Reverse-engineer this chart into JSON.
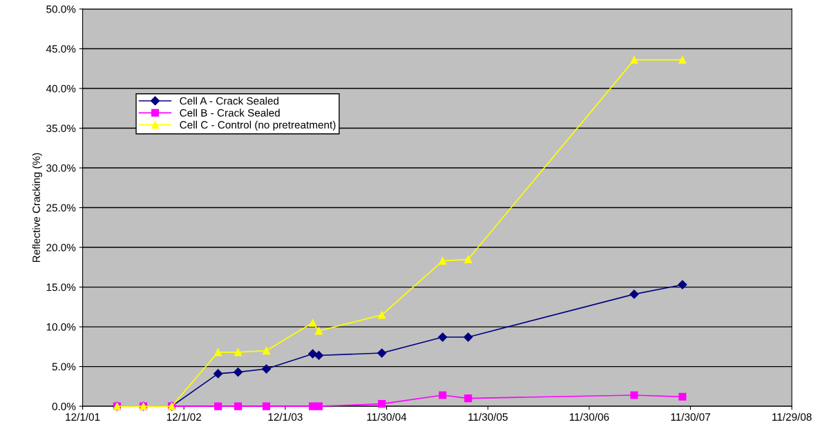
{
  "chart_data": {
    "type": "line",
    "ylabel": "Reflective Cracking (%)",
    "x": [
      "2002-04-04",
      "2002-07-08",
      "2002-10-18",
      "2003-04-03",
      "2003-06-14",
      "2003-09-24",
      "2004-03-09",
      "2004-03-31",
      "2004-11-13",
      "2005-06-20",
      "2005-09-20",
      "2007-05-11",
      "2007-11-01"
    ],
    "series": [
      {
        "name": "Cell A - Crack Sealed",
        "color": "#000080",
        "marker": "diamond",
        "values": [
          0,
          0,
          0,
          4.1,
          4.3,
          4.7,
          6.6,
          6.4,
          6.7,
          8.7,
          8.7,
          14.1,
          15.3
        ]
      },
      {
        "name": "Cell B - Crack Sealed",
        "color": "#ff00ff",
        "marker": "square",
        "values": [
          0,
          0,
          0,
          0,
          0,
          0,
          0,
          0,
          0.3,
          1.4,
          1.0,
          1.4,
          1.2
        ]
      },
      {
        "name": "Cell C - Control (no pretreatment)",
        "color": "#ffff00",
        "marker": "triangle",
        "values": [
          0,
          0,
          0,
          6.8,
          6.8,
          7.0,
          10.5,
          9.5,
          11.5,
          18.3,
          18.5,
          43.6,
          43.6
        ]
      }
    ],
    "xlim": [
      "2001-12-01",
      "2008-11-29"
    ],
    "xticks": [
      {
        "value": "2001-12-01",
        "label": "12/1/01"
      },
      {
        "value": "2002-12-01",
        "label": "12/1/02"
      },
      {
        "value": "2003-12-01",
        "label": "12/1/03"
      },
      {
        "value": "2004-11-30",
        "label": "11/30/04"
      },
      {
        "value": "2005-11-30",
        "label": "11/30/05"
      },
      {
        "value": "2006-11-30",
        "label": "11/30/06"
      },
      {
        "value": "2007-11-30",
        "label": "11/30/07"
      },
      {
        "value": "2008-11-29",
        "label": "11/29/08"
      }
    ],
    "ylim": [
      0,
      50
    ],
    "yticks": [
      {
        "value": 0,
        "label": "0.0%"
      },
      {
        "value": 5,
        "label": "5.0%"
      },
      {
        "value": 10,
        "label": "10.0%"
      },
      {
        "value": 15,
        "label": "15.0%"
      },
      {
        "value": 20,
        "label": "20.0%"
      },
      {
        "value": 25,
        "label": "25.0%"
      },
      {
        "value": 30,
        "label": "30.0%"
      },
      {
        "value": 35,
        "label": "35.0%"
      },
      {
        "value": 40,
        "label": "40.0%"
      },
      {
        "value": 45,
        "label": "45.0%"
      },
      {
        "value": 50,
        "label": "50.0%"
      }
    ],
    "grid": "y",
    "legend": "top left"
  }
}
